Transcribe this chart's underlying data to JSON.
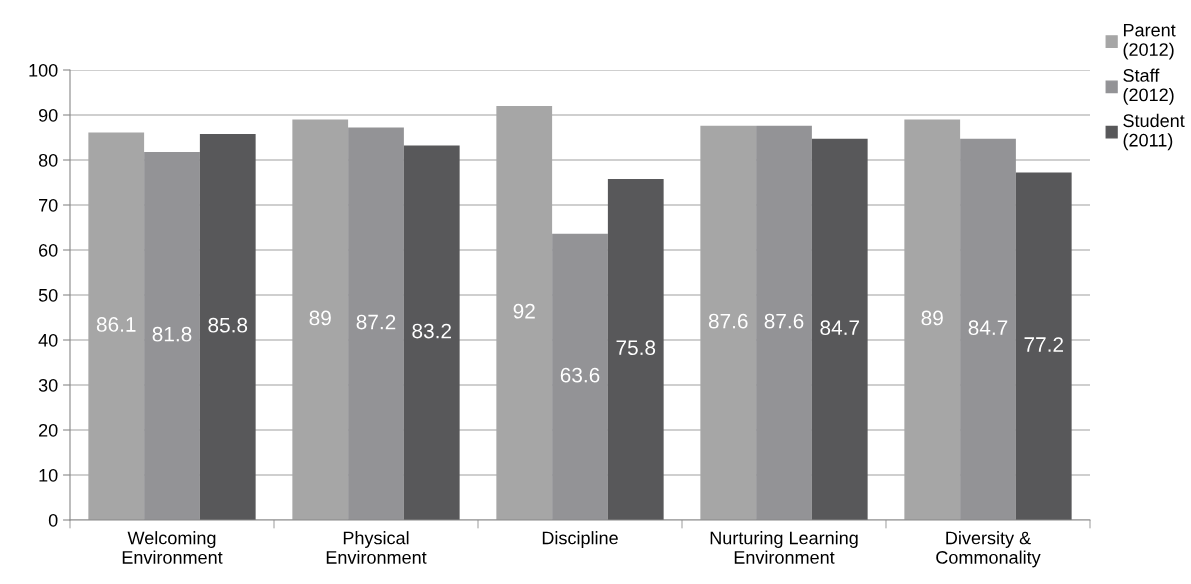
{
  "chart_data": {
    "type": "bar",
    "categories": [
      "Welcoming\nEnvironment",
      "Physical\nEnvironment",
      "Discipline",
      "Nurturing Learning\nEnvironment",
      "Diversity &\nCommonality"
    ],
    "series": [
      {
        "name": "Parent\n(2012)",
        "color": "#a6a6a6",
        "values": [
          86.1,
          89,
          92,
          87.6,
          89
        ]
      },
      {
        "name": "Staff\n(2012)",
        "color": "#939396",
        "values": [
          81.8,
          87.2,
          63.6,
          87.6,
          84.7
        ]
      },
      {
        "name": "Student\n(2011)",
        "color": "#58585a",
        "values": [
          85.8,
          83.2,
          75.8,
          84.7,
          77.2
        ]
      }
    ],
    "ylim": [
      0,
      100
    ],
    "yticks": [
      0,
      10,
      20,
      30,
      40,
      50,
      60,
      70,
      80,
      90,
      100
    ],
    "grid": "y",
    "legend": "top right",
    "data_labels": true
  }
}
